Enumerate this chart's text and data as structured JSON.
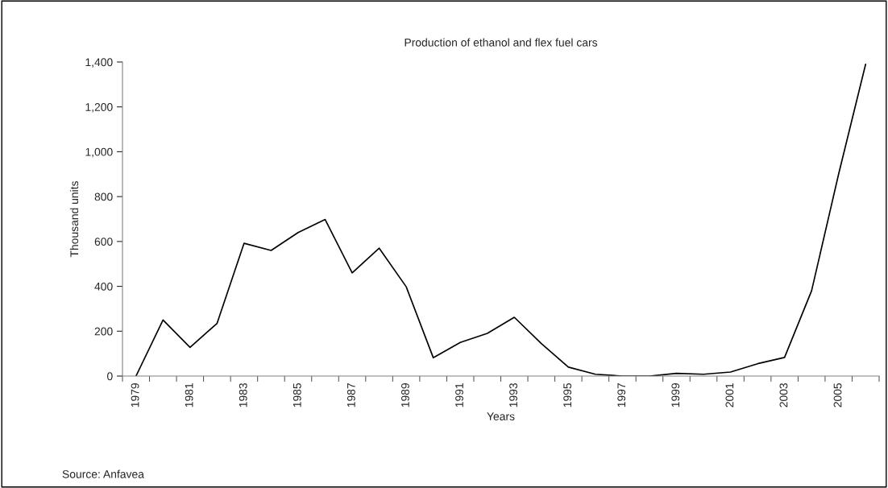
{
  "chart_data": {
    "type": "line",
    "title": "Production of ethanol and flex fuel cars",
    "xlabel": "Years",
    "ylabel": "Thousand units",
    "categories": [
      "1979",
      null,
      "1981",
      null,
      "1983",
      null,
      "1985",
      null,
      "1987",
      null,
      "1989",
      null,
      "1991",
      null,
      "1993",
      null,
      "1995",
      null,
      "1997",
      null,
      "1999",
      null,
      "2001",
      null,
      "2003",
      null,
      "2005",
      null
    ],
    "series": [
      {
        "color": "#000000",
        "values": [
          0,
          250,
          128,
          235,
          592,
          560,
          640,
          698,
          460,
          570,
          398,
          82,
          150,
          190,
          262,
          145,
          40,
          8,
          0,
          0,
          12,
          8,
          18,
          55,
          83,
          380,
          900,
          1390
        ]
      }
    ],
    "ylim": [
      0,
      1400
    ],
    "yticks": [
      0,
      {
        "value": 200,
        "label": "200"
      },
      {
        "value": 400,
        "label": "400"
      },
      {
        "value": 600,
        "label": "600"
      },
      {
        "value": 800,
        "label": "800"
      },
      {
        "value": 1000,
        "label": "1,000"
      },
      {
        "value": 1200,
        "label": "1,200"
      },
      {
        "value": 1400,
        "label": "1,400"
      }
    ],
    "grid": false,
    "legend": false,
    "marker": "none",
    "line_style": "solid",
    "annotations": [
      "Source: Anfavea"
    ]
  }
}
